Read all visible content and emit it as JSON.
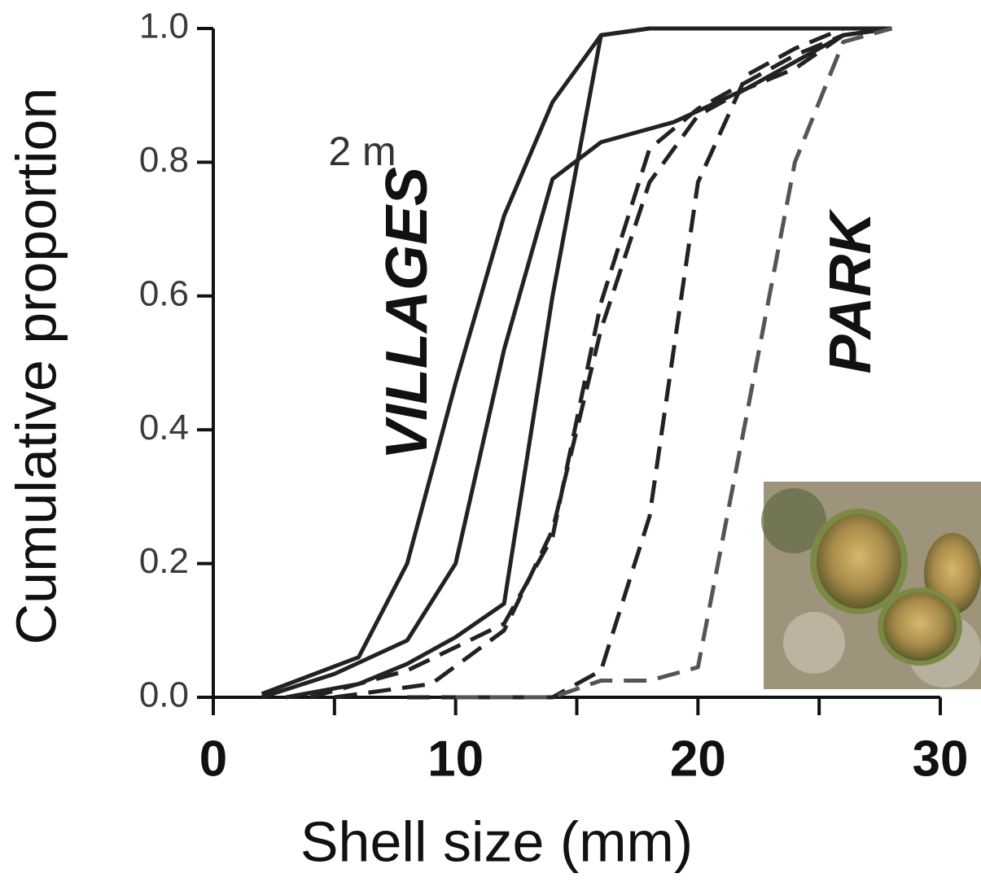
{
  "chart_data": {
    "type": "line",
    "xlabel": "Shell size (mm)",
    "ylabel": "Cumulative proportion",
    "xlim": [
      0,
      30
    ],
    "ylim": [
      0,
      1
    ],
    "xticks": [
      0,
      10,
      20,
      30
    ],
    "xminorticks": [
      5,
      15,
      25
    ],
    "yticks": [
      {
        "value": 0,
        "label": "0.0"
      },
      0.2,
      0.4,
      0.6,
      0.8,
      {
        "value": 1,
        "label": "1.0"
      }
    ],
    "annotations": [
      "2 m",
      "VILLAGES",
      "PARK"
    ],
    "series": [
      {
        "color": "#222222",
        "dashed": false,
        "x": [
          2,
          6,
          8,
          10,
          12,
          14,
          16,
          18,
          28
        ],
        "values": [
          0.005,
          0.06,
          0.2,
          0.47,
          0.72,
          0.89,
          0.99,
          1.0,
          1.0
        ]
      },
      {
        "color": "#222222",
        "dashed": false,
        "x": [
          2,
          5,
          8,
          10,
          12,
          14,
          16,
          19,
          22,
          24,
          26,
          28
        ],
        "values": [
          0.0,
          0.035,
          0.085,
          0.2,
          0.52,
          0.775,
          0.83,
          0.86,
          0.91,
          0.95,
          0.99,
          1.0
        ]
      },
      {
        "color": "#222222",
        "dashed": false,
        "x": [
          3,
          6,
          8,
          10,
          12,
          14,
          16,
          18,
          28
        ],
        "values": [
          0.0,
          0.02,
          0.05,
          0.09,
          0.14,
          0.6,
          0.99,
          1.0,
          1.0
        ]
      },
      {
        "color": "#222222",
        "dashed": true,
        "x": [
          4,
          8,
          10,
          12,
          14,
          16,
          18,
          20,
          22,
          24,
          26,
          28
        ],
        "values": [
          0.0,
          0.04,
          0.075,
          0.11,
          0.24,
          0.59,
          0.82,
          0.88,
          0.92,
          0.96,
          0.99,
          1.0
        ]
      },
      {
        "color": "#222222",
        "dashed": true,
        "x": [
          5,
          9,
          12,
          14,
          16,
          18,
          20,
          22,
          24,
          26,
          28
        ],
        "values": [
          0.0,
          0.02,
          0.1,
          0.25,
          0.55,
          0.77,
          0.87,
          0.91,
          0.94,
          0.99,
          1.0
        ]
      },
      {
        "color": "#222222",
        "dashed": true,
        "x": [
          8,
          14,
          16,
          18,
          20,
          22,
          24,
          26,
          28
        ],
        "values": [
          0.0,
          0.0,
          0.04,
          0.27,
          0.77,
          0.93,
          0.97,
          1.0,
          1.0
        ]
      },
      {
        "color": "#555555",
        "dashed": true,
        "x": [
          10,
          14,
          16,
          18,
          20,
          22,
          24,
          26,
          28
        ],
        "values": [
          0.0,
          0.0,
          0.025,
          0.025,
          0.045,
          0.42,
          0.8,
          0.98,
          1.0
        ]
      }
    ]
  }
}
